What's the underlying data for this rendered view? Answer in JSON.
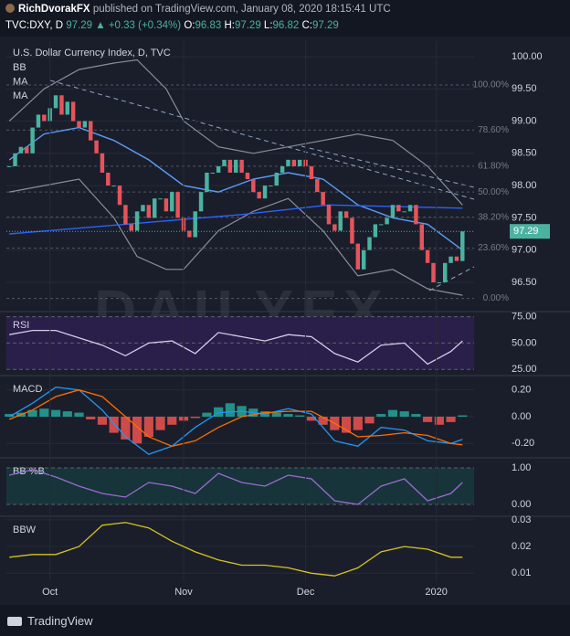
{
  "header": {
    "author": "RichDvorakFX",
    "published": "published on TradingView.com, January 08, 2020 18:15:41 UTC",
    "symbol": "TVC:DXY, D",
    "last": "97.29",
    "change": "▲ +0.33 (+0.34%)",
    "ohlc": [
      {
        "label": "O:",
        "value": "96.83"
      },
      {
        "label": "H:",
        "value": "97.29"
      },
      {
        "label": "L:",
        "value": "96.82"
      },
      {
        "label": "C:",
        "value": "97.29"
      }
    ]
  },
  "watermark": "DAILYFX",
  "footer": "TradingView",
  "chart_data": [
    {
      "type": "candlestick",
      "title": "U.S. Dollar Currency Index, D, TVC",
      "up_color": "#4bb2a0",
      "down_color": "#e5545c",
      "values": [
        98.3,
        98.5,
        98.6,
        98.5,
        98.9,
        99.1,
        99.0,
        99.2,
        99.4,
        99.1,
        99.3,
        99.0,
        98.9,
        99.0,
        98.7,
        98.5,
        98.2,
        98.0,
        98.0,
        97.7,
        97.4,
        97.3,
        97.6,
        97.7,
        97.5,
        97.8,
        97.8,
        97.6,
        97.9,
        97.5,
        97.3,
        97.2,
        97.6,
        97.9,
        98.2,
        98.2,
        98.3,
        98.4,
        98.2,
        98.4,
        98.2,
        98.1,
        97.9,
        97.8,
        98.0,
        98.0,
        98.2,
        98.3,
        98.4,
        98.3,
        98.4,
        98.3,
        98.1,
        97.9,
        97.7,
        97.4,
        97.3,
        97.6,
        97.5,
        97.1,
        96.7,
        97.0,
        97.2,
        97.4,
        97.4,
        97.5,
        97.7,
        97.6,
        97.6,
        97.7,
        97.4,
        97.0,
        96.8,
        96.5,
        96.5,
        96.8,
        96.9,
        96.83,
        97.29
      ],
      "series": [
        {
          "name": "BB",
          "type": "band",
          "color": "#8a8e99",
          "x": [
            0,
            6,
            12,
            18,
            22,
            27,
            30,
            36,
            42,
            48,
            54,
            60,
            66,
            72,
            78
          ],
          "upper": [
            99.0,
            99.5,
            99.8,
            99.9,
            99.95,
            99.5,
            99.0,
            98.6,
            98.5,
            98.6,
            98.7,
            98.8,
            98.7,
            98.3,
            97.7
          ],
          "lower": [
            97.9,
            98.0,
            98.1,
            97.5,
            96.9,
            96.7,
            96.7,
            97.3,
            97.6,
            97.8,
            97.3,
            96.6,
            96.7,
            96.4,
            96.3
          ]
        },
        {
          "name": "MA",
          "color": "#5b9cf6",
          "x": [
            0,
            6,
            12,
            18,
            24,
            30,
            36,
            42,
            48,
            54,
            60,
            66,
            72,
            78
          ],
          "values": [
            98.4,
            98.8,
            98.9,
            98.7,
            98.4,
            98.0,
            97.9,
            98.1,
            98.2,
            98.1,
            97.7,
            97.5,
            97.4,
            97.0
          ]
        },
        {
          "name": "MA",
          "color": "#2962ff",
          "x": [
            0,
            20,
            40,
            55,
            78
          ],
          "values": [
            97.25,
            97.4,
            97.55,
            97.7,
            97.65
          ]
        }
      ],
      "fib_levels": [
        {
          "value": 99.56,
          "label": "100.00%"
        },
        {
          "value": 98.86,
          "label": "78.60%"
        },
        {
          "value": 98.3,
          "label": "61.80%"
        },
        {
          "value": 97.9,
          "label": "50.00%"
        },
        {
          "value": 97.51,
          "label": "38.20%"
        },
        {
          "value": 97.03,
          "label": "23.60%"
        },
        {
          "value": 96.25,
          "label": "0.00%"
        }
      ],
      "last_price": {
        "value": 97.29,
        "label": "97.29"
      },
      "xlim": [
        -0.5,
        80
      ],
      "ylim": [
        96.06,
        100.24
      ],
      "yticks": [
        {
          "value": 96.5,
          "label": "96.50"
        },
        {
          "value": 97,
          "label": "97.00"
        },
        {
          "value": 97.5,
          "label": "97.50"
        },
        {
          "value": 98,
          "label": "98.00"
        },
        {
          "value": 98.5,
          "label": "98.50"
        },
        {
          "value": 99,
          "label": "99.00"
        },
        {
          "value": 99.5,
          "label": "99.50"
        },
        {
          "value": 100,
          "label": "100.00"
        }
      ]
    },
    {
      "type": "line",
      "title": "RSI",
      "band": [
        25,
        75
      ],
      "band_color": "#2a1f4a",
      "series": [
        {
          "color": "#d0cde8",
          "x": [
            0,
            4,
            8,
            12,
            16,
            20,
            24,
            28,
            32,
            36,
            40,
            44,
            48,
            52,
            56,
            60,
            64,
            68,
            72,
            76,
            78
          ],
          "values": [
            58,
            62,
            62,
            55,
            48,
            38,
            50,
            52,
            40,
            60,
            56,
            52,
            58,
            56,
            40,
            32,
            48,
            50,
            30,
            42,
            52
          ]
        }
      ],
      "xlim": [
        -0.5,
        80
      ],
      "ylim": [
        20,
        79
      ],
      "yticks": [
        {
          "value": 25,
          "label": "25.00"
        },
        {
          "value": 50,
          "label": "50.00"
        },
        {
          "value": 75,
          "label": "75.00"
        }
      ]
    },
    {
      "type": "macd",
      "title": "MACD",
      "histogram": {
        "up_color": "#26a69a",
        "down_color": "#ef5350",
        "x": [
          0,
          2,
          4,
          6,
          8,
          10,
          12,
          14,
          16,
          18,
          20,
          22,
          24,
          26,
          28,
          30,
          32,
          34,
          36,
          38,
          40,
          42,
          44,
          46,
          48,
          50,
          52,
          54,
          56,
          58,
          60,
          62,
          64,
          66,
          68,
          70,
          72,
          74,
          76,
          78
        ],
        "values": [
          0.02,
          0.03,
          0.05,
          0.06,
          0.05,
          0.04,
          0.03,
          -0.02,
          -0.06,
          -0.12,
          -0.17,
          -0.2,
          -0.15,
          -0.1,
          -0.06,
          -0.03,
          -0.01,
          0.03,
          0.07,
          0.1,
          0.08,
          0.06,
          0.04,
          0.03,
          0.02,
          0.01,
          -0.03,
          -0.06,
          -0.1,
          -0.12,
          -0.1,
          -0.05,
          0.02,
          0.05,
          0.04,
          0.02,
          -0.04,
          -0.06,
          -0.04,
          0.01
        ]
      },
      "series": [
        {
          "color": "#2196f3",
          "x": [
            0,
            4,
            8,
            12,
            16,
            20,
            24,
            28,
            32,
            36,
            40,
            44,
            48,
            52,
            56,
            60,
            64,
            68,
            72,
            76,
            78
          ],
          "values": [
            0.0,
            0.1,
            0.22,
            0.2,
            0.05,
            -0.15,
            -0.28,
            -0.22,
            -0.08,
            0.03,
            0.04,
            0.02,
            0.06,
            0.02,
            -0.18,
            -0.22,
            -0.08,
            -0.1,
            -0.18,
            -0.2,
            -0.17
          ]
        },
        {
          "color": "#ff6d00",
          "x": [
            0,
            4,
            8,
            12,
            16,
            20,
            24,
            28,
            32,
            36,
            40,
            44,
            48,
            52,
            56,
            60,
            64,
            68,
            72,
            76,
            78
          ],
          "values": [
            -0.02,
            0.05,
            0.15,
            0.2,
            0.15,
            0.0,
            -0.15,
            -0.22,
            -0.18,
            -0.08,
            0.0,
            0.03,
            0.04,
            0.04,
            -0.05,
            -0.15,
            -0.14,
            -0.12,
            -0.14,
            -0.2,
            -0.21
          ]
        }
      ],
      "xlim": [
        -0.5,
        80
      ],
      "ylim": [
        -0.3,
        0.3
      ],
      "yticks": [
        {
          "value": -0.2,
          "label": "-0.20"
        },
        {
          "value": 0,
          "label": "0.00"
        },
        {
          "value": 0.2,
          "label": "0.20"
        }
      ]
    },
    {
      "type": "line",
      "title": "BB %B",
      "band": [
        0,
        1
      ],
      "band_color": "#17343a",
      "series": [
        {
          "color": "#9c6ad0",
          "x": [
            0,
            4,
            8,
            12,
            16,
            20,
            24,
            28,
            32,
            36,
            40,
            44,
            48,
            52,
            56,
            60,
            64,
            68,
            72,
            76,
            78
          ],
          "values": [
            0.8,
            0.95,
            0.75,
            0.5,
            0.3,
            0.2,
            0.6,
            0.5,
            0.3,
            0.85,
            0.6,
            0.5,
            0.8,
            0.7,
            0.1,
            0.0,
            0.5,
            0.7,
            0.1,
            0.3,
            0.6
          ]
        }
      ],
      "xlim": [
        -0.5,
        80
      ],
      "ylim": [
        -0.35,
        1.25
      ],
      "yticks": [
        {
          "value": 0,
          "label": "0.00"
        },
        {
          "value": 1,
          "label": "1.00"
        }
      ]
    },
    {
      "type": "line",
      "title": "BBW",
      "series": [
        {
          "color": "#d6c31f",
          "x": [
            0,
            4,
            8,
            12,
            16,
            20,
            24,
            28,
            32,
            36,
            40,
            44,
            48,
            52,
            56,
            60,
            64,
            68,
            72,
            76,
            78
          ],
          "values": [
            0.016,
            0.017,
            0.017,
            0.02,
            0.028,
            0.029,
            0.027,
            0.022,
            0.018,
            0.015,
            0.013,
            0.013,
            0.012,
            0.01,
            0.009,
            0.012,
            0.018,
            0.02,
            0.019,
            0.016,
            0.016
          ]
        }
      ],
      "xlim": [
        -0.5,
        80
      ],
      "ylim": [
        0.007,
        0.031
      ],
      "yticks": [
        0.01,
        0.02,
        0.03
      ],
      "xticks": [
        {
          "value": 7,
          "label": "Oct"
        },
        {
          "value": 30,
          "label": "Nov"
        },
        {
          "value": 51,
          "label": "Dec"
        },
        {
          "value": 73.5,
          "label": "2020"
        }
      ]
    }
  ]
}
